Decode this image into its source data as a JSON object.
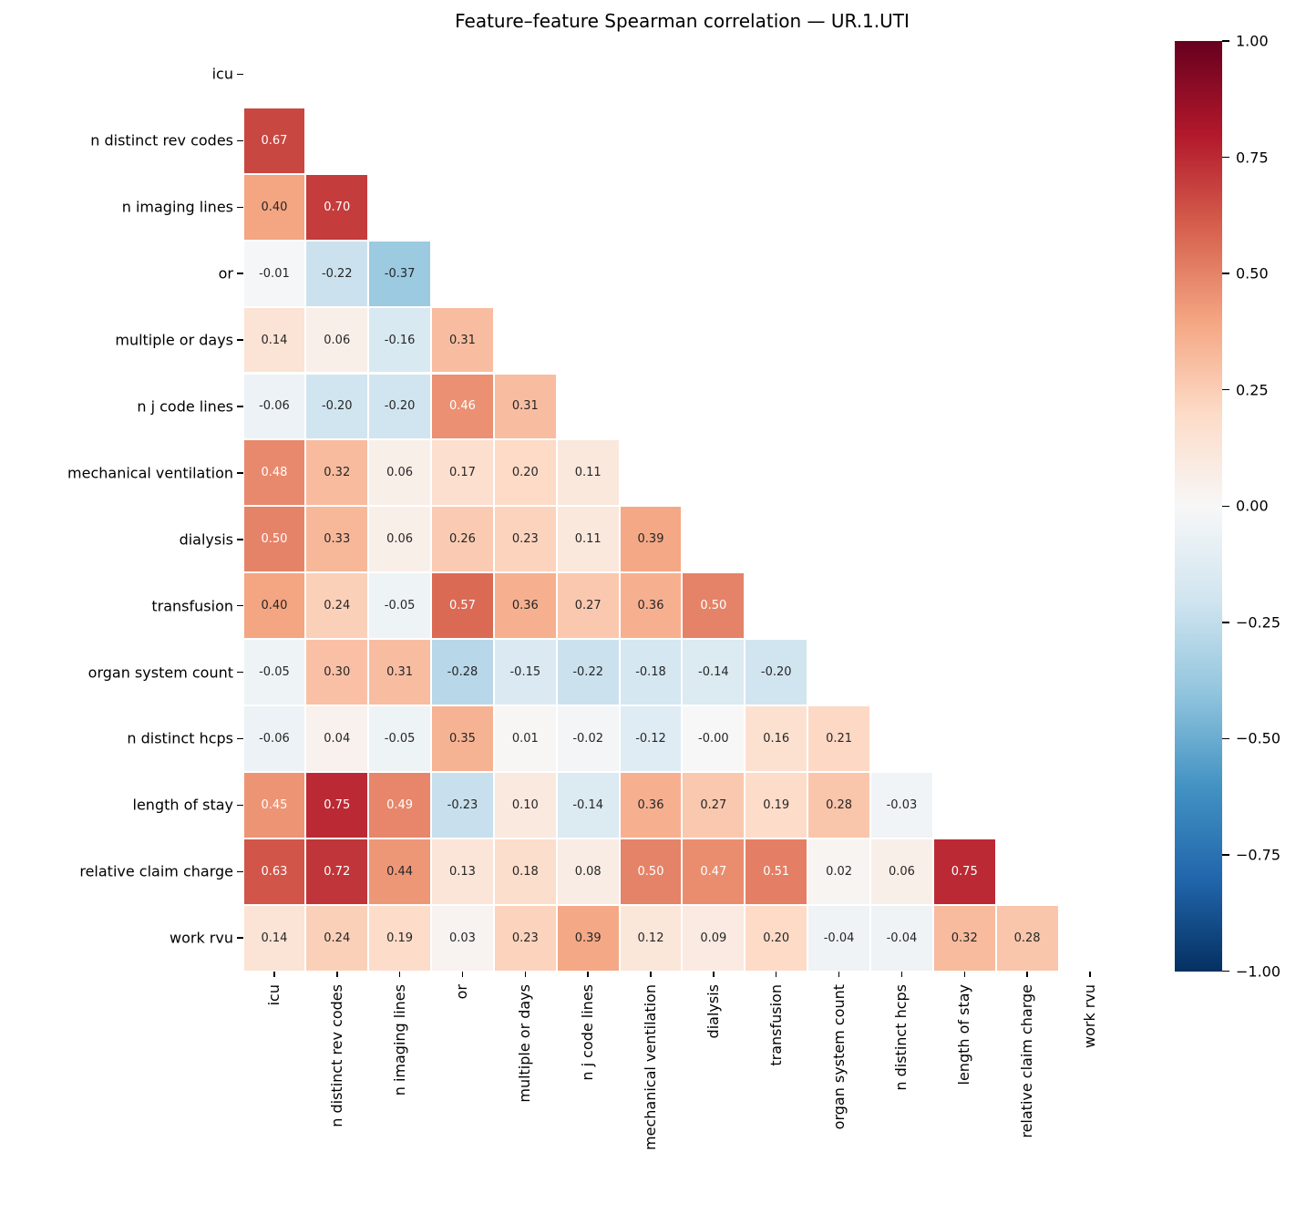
{
  "chart_data": {
    "type": "heatmap",
    "title": "Feature–feature Spearman correlation — UR.1.UTI",
    "features": [
      "icu",
      "n distinct rev codes",
      "n imaging lines",
      "or",
      "multiple or days",
      "n j code lines",
      "mechanical ventilation",
      "dialysis",
      "transfusion",
      "organ system count",
      "n distinct hcps",
      "length of stay",
      "relative claim charge",
      "work rvu"
    ],
    "matrix_lower_triangle": [
      [],
      [
        0.67
      ],
      [
        0.4,
        0.7
      ],
      [
        -0.01,
        -0.22,
        -0.37
      ],
      [
        0.14,
        0.06,
        -0.16,
        0.31
      ],
      [
        -0.06,
        -0.2,
        -0.2,
        0.46,
        0.31
      ],
      [
        0.48,
        0.32,
        0.06,
        0.17,
        0.2,
        0.11
      ],
      [
        0.5,
        0.33,
        0.06,
        0.26,
        0.23,
        0.11,
        0.39
      ],
      [
        0.4,
        0.24,
        -0.05,
        0.57,
        0.36,
        0.27,
        0.36,
        0.5
      ],
      [
        -0.05,
        0.3,
        0.31,
        -0.28,
        -0.15,
        -0.22,
        -0.18,
        -0.14,
        -0.2
      ],
      [
        -0.06,
        0.04,
        -0.05,
        0.35,
        0.01,
        -0.02,
        -0.12,
        -0.0,
        0.16,
        0.21
      ],
      [
        0.45,
        0.75,
        0.49,
        -0.23,
        0.1,
        -0.14,
        0.36,
        0.27,
        0.19,
        0.28,
        -0.03
      ],
      [
        0.63,
        0.72,
        0.44,
        0.13,
        0.18,
        0.08,
        0.5,
        0.47,
        0.51,
        0.02,
        0.06,
        0.75
      ],
      [
        0.14,
        0.24,
        0.19,
        0.03,
        0.23,
        0.39,
        0.12,
        0.09,
        0.2,
        -0.04,
        -0.04,
        0.32,
        0.28
      ]
    ],
    "mask": "upper triangle and diagonal hidden",
    "vmin": -1,
    "vmax": 1,
    "colormap": "RdBu_r",
    "colormap_anchors_low_to_high": [
      "#053061",
      "#2166ac",
      "#4393c3",
      "#92c5de",
      "#d1e5f0",
      "#f7f7f7",
      "#fddbc7",
      "#f4a582",
      "#d6604d",
      "#b2182b",
      "#67001f"
    ],
    "colorbar_tick_labels": [
      "1.00",
      "0.75",
      "0.50",
      "0.25",
      "0.00",
      "−0.25",
      "−0.50",
      "−0.75",
      "−1.00"
    ],
    "annotation": {
      "format": "0.00",
      "light_text_color": "#ffffff",
      "dark_text_color": "#262626",
      "light_text_abs_threshold": 0.45
    },
    "grid_line_color": "#ffffff",
    "background_color": "#ffffff",
    "legend_position": "right-colorbar"
  }
}
